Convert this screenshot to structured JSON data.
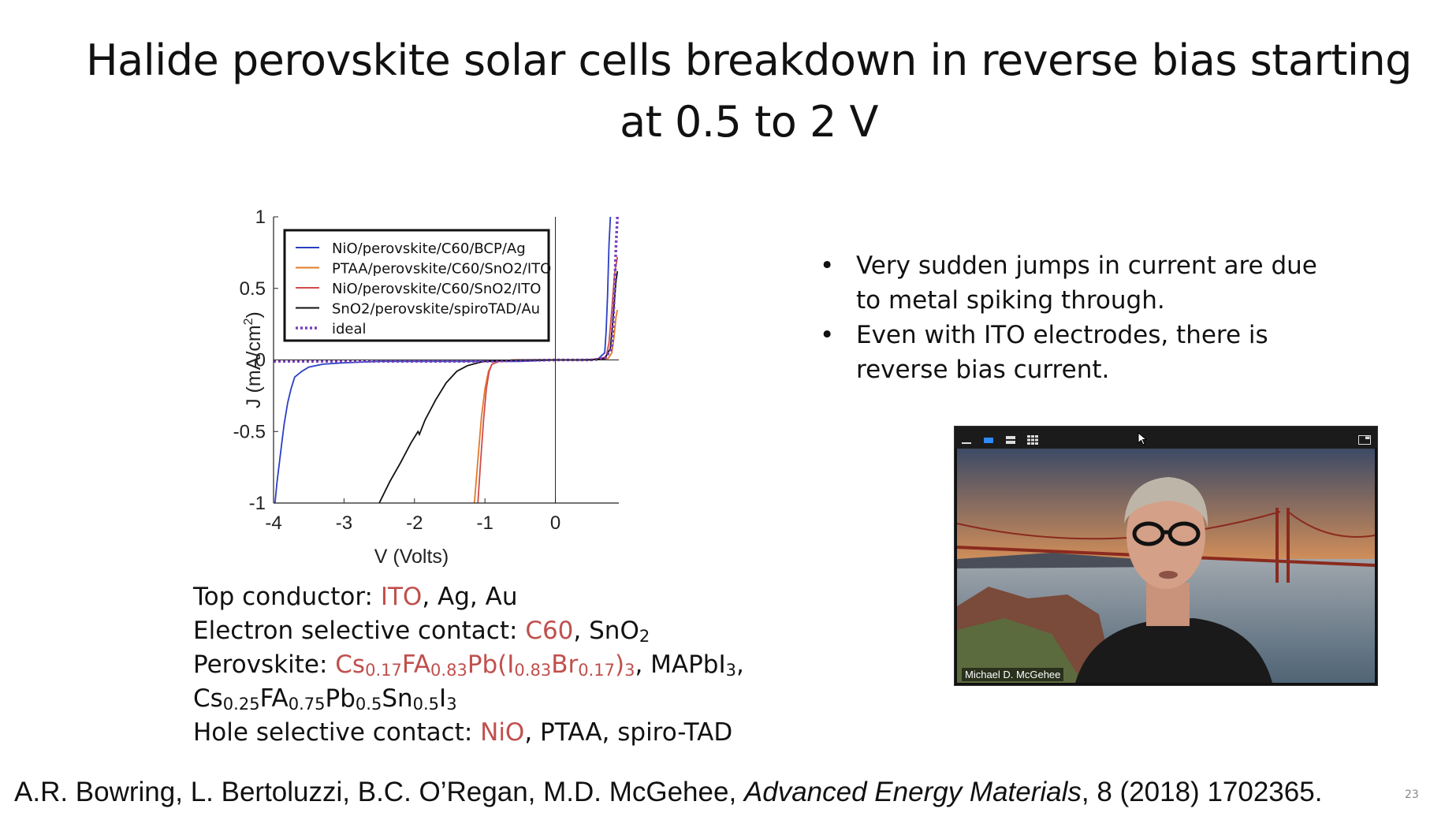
{
  "slide": {
    "title_line1": "Halide perovskite solar cells breakdown in reverse bias starting",
    "title_line2": "at 0.5 to 2 V",
    "bullets": [
      {
        "line1": "Very sudden jumps in current are due",
        "line2": "to metal spiking through."
      },
      {
        "line1": "Even with ITO electrodes, there is",
        "line2": "reverse bias current."
      }
    ],
    "bullet_glyph": "•",
    "materials": {
      "top_conductor": {
        "label": "Top conductor: ",
        "highlight": "ITO",
        "rest": ", Ag, Au"
      },
      "electron_contact": {
        "label": "Electron selective contact: ",
        "highlight": "C60",
        "rest": ", SnO",
        "rest_sub": "2"
      },
      "perovskite": {
        "label": "Perovskite: ",
        "hl_1": "Cs",
        "hl_1_sub": "0.17",
        "hl_2": "FA",
        "hl_2_sub": "0.83",
        "hl_3": "Pb(I",
        "hl_3_sub": "0.83",
        "hl_4": "Br",
        "hl_4_sub": "0.17",
        "hl_5": ")",
        "hl_5_sub": "3",
        "rest_1": ", MAPbI",
        "rest_1_sub": "3",
        "rest_2": ",",
        "line2_a": "Cs",
        "line2_a_sub": "0.25",
        "line2_b": "FA",
        "line2_b_sub": "0.75",
        "line2_c": "Pb",
        "line2_c_sub": "0.5",
        "line2_d": "Sn",
        "line2_d_sub": "0.5",
        "line2_e": "I",
        "line2_e_sub": "3"
      },
      "hole_contact": {
        "label": "Hole selective contact: ",
        "highlight": "NiO",
        "rest": ", PTAA, spiro-TAD"
      }
    },
    "citation": {
      "authors": "A.R. Bowring, L. Bertoluzzi, B.C. O’Regan, M.D. McGehee, ",
      "journal": "Advanced Energy Materials",
      "rest": ", 8 (2018) 1702365."
    },
    "slide_number": "23",
    "highlight_color": "#c0504d"
  },
  "video": {
    "participant_name": "Michael D. McGehee",
    "toolbar_icons": [
      "minimize-icon",
      "speaker-view-icon",
      "stacked-view-icon",
      "gallery-view-icon",
      "exit-fullscreen-icon"
    ],
    "active_color": "#2d8cff"
  },
  "chart_data": {
    "type": "line",
    "xlabel": "V  (Volts)",
    "ylabel": "J  (mA/cm",
    "ylabel_sup": "2",
    "ylabel_close": ")",
    "xlim": [
      -4,
      0.9
    ],
    "ylim": [
      -1,
      1
    ],
    "xticks": [
      -4,
      -3,
      -2,
      -1,
      0
    ],
    "xtick_labels": [
      "-4",
      "-3",
      "-2",
      "-1",
      "0"
    ],
    "yticks": [
      -1,
      -0.5,
      0,
      0.5,
      1
    ],
    "ytick_labels": [
      "-1",
      "-0.5",
      "0",
      "0.5",
      "1"
    ],
    "grid": false,
    "legend_position": "top-left",
    "series": [
      {
        "name": "NiO/perovskite/C60/BCP/Ag",
        "color": "#2b3fc4",
        "dash": false,
        "x": [
          -3.98,
          -3.95,
          -3.9,
          -3.85,
          -3.8,
          -3.75,
          -3.7,
          -3.6,
          -3.5,
          -3.3,
          -3.0,
          -2.5,
          -2.0,
          -1.5,
          -1.0,
          -0.5,
          0,
          0.3,
          0.6,
          0.7,
          0.72,
          0.74,
          0.76,
          0.78
        ],
        "y": [
          -1.0,
          -0.85,
          -0.65,
          -0.45,
          -0.3,
          -0.2,
          -0.12,
          -0.08,
          -0.05,
          -0.03,
          -0.02,
          -0.01,
          -0.01,
          -0.01,
          -0.01,
          -0.01,
          0,
          0,
          0.005,
          0.05,
          0.2,
          0.45,
          0.8,
          1.0
        ]
      },
      {
        "name": "PTAA/perovskite/C60/SnO2/ITO",
        "color": "#e07b2a",
        "dash": false,
        "x": [
          -1.15,
          -1.1,
          -1.05,
          -1.0,
          -0.95,
          -0.9,
          -0.8,
          -0.6,
          -0.4,
          0,
          0.5,
          0.75,
          0.8,
          0.83,
          0.86,
          0.88
        ],
        "y": [
          -1.0,
          -0.7,
          -0.4,
          -0.2,
          -0.08,
          -0.03,
          -0.01,
          0,
          0,
          0,
          0,
          0.01,
          0.05,
          0.15,
          0.3,
          0.35
        ]
      },
      {
        "name": "NiO/perovskite/C60/SnO2/ITO",
        "color": "#d14b4b",
        "dash": false,
        "x": [
          -1.1,
          -1.06,
          -1.02,
          -0.98,
          -0.94,
          -0.9,
          -0.8,
          -0.6,
          -0.4,
          0,
          0.5,
          0.72,
          0.76,
          0.8,
          0.84,
          0.88
        ],
        "y": [
          -1.0,
          -0.7,
          -0.42,
          -0.2,
          -0.08,
          -0.03,
          -0.01,
          0,
          0,
          0,
          0,
          0.02,
          0.12,
          0.35,
          0.6,
          0.72
        ]
      },
      {
        "name": "SnO2/perovskite/spiroTAD/Au",
        "color": "#111111",
        "dash": false,
        "x": [
          -2.5,
          -2.35,
          -2.2,
          -2.05,
          -1.95,
          -1.93,
          -1.85,
          -1.7,
          -1.55,
          -1.4,
          -1.25,
          -1.1,
          -1.0,
          -0.8,
          -0.5,
          0,
          0.5,
          0.7,
          0.78,
          0.82,
          0.86,
          0.88
        ],
        "y": [
          -1.0,
          -0.85,
          -0.72,
          -0.58,
          -0.5,
          -0.52,
          -0.42,
          -0.28,
          -0.16,
          -0.08,
          -0.04,
          -0.02,
          -0.01,
          -0.005,
          0,
          0,
          0,
          0.01,
          0.08,
          0.3,
          0.55,
          0.62
        ]
      },
      {
        "name": "ideal",
        "color": "#7a3fbf",
        "dash": true,
        "x": [
          -4,
          -3,
          -2,
          -1,
          0,
          0.5,
          0.7,
          0.8,
          0.82,
          0.84,
          0.86,
          0.88
        ],
        "y": [
          -0.01,
          -0.01,
          -0.01,
          -0.01,
          0,
          0,
          0.01,
          0.08,
          0.25,
          0.5,
          0.8,
          1.0
        ]
      }
    ]
  }
}
